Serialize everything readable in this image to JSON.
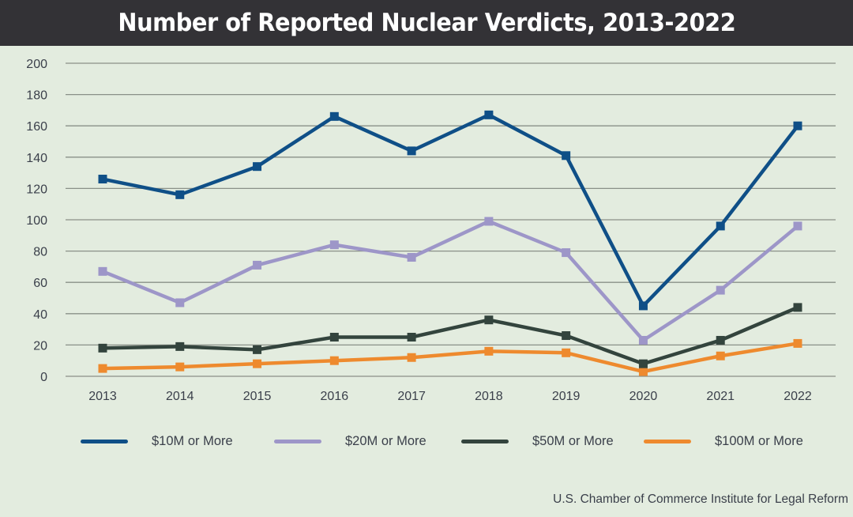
{
  "header": {
    "title": "Number of Reported Nuclear Verdicts, 2013-2022"
  },
  "source": "U.S. Chamber of Commerce Institute for Legal Reform",
  "colors": {
    "background": "#e3ecdf",
    "title_bar": "#333236",
    "grid": "#8a9088",
    "s10": "#0f4f87",
    "s20": "#9d96c8",
    "s50": "#33443d",
    "s100": "#ee8a2e"
  },
  "chart_data": {
    "type": "line",
    "title": "Number of Reported Nuclear Verdicts, 2013-2022",
    "xlabel": "",
    "ylabel": "",
    "categories": [
      "2013",
      "2014",
      "2015",
      "2016",
      "2017",
      "2018",
      "2019",
      "2020",
      "2021",
      "2022"
    ],
    "ylim": [
      0,
      200
    ],
    "yticks": [
      0,
      20,
      40,
      60,
      80,
      100,
      120,
      140,
      160,
      180,
      200
    ],
    "grid": true,
    "legend_position": "bottom",
    "marker": "square",
    "series": [
      {
        "name": "$10M or More",
        "color": "#0f4f87",
        "values": [
          126,
          116,
          134,
          166,
          144,
          167,
          141,
          45,
          96,
          160
        ]
      },
      {
        "name": "$20M or More",
        "color": "#9d96c8",
        "values": [
          67,
          47,
          71,
          84,
          76,
          99,
          79,
          23,
          55,
          96
        ]
      },
      {
        "name": "$50M or More",
        "color": "#33443d",
        "values": [
          18,
          19,
          17,
          25,
          25,
          36,
          26,
          8,
          23,
          44
        ]
      },
      {
        "name": "$100M or More",
        "color": "#ee8a2e",
        "values": [
          5,
          6,
          8,
          10,
          12,
          16,
          15,
          3,
          13,
          21
        ]
      }
    ]
  }
}
